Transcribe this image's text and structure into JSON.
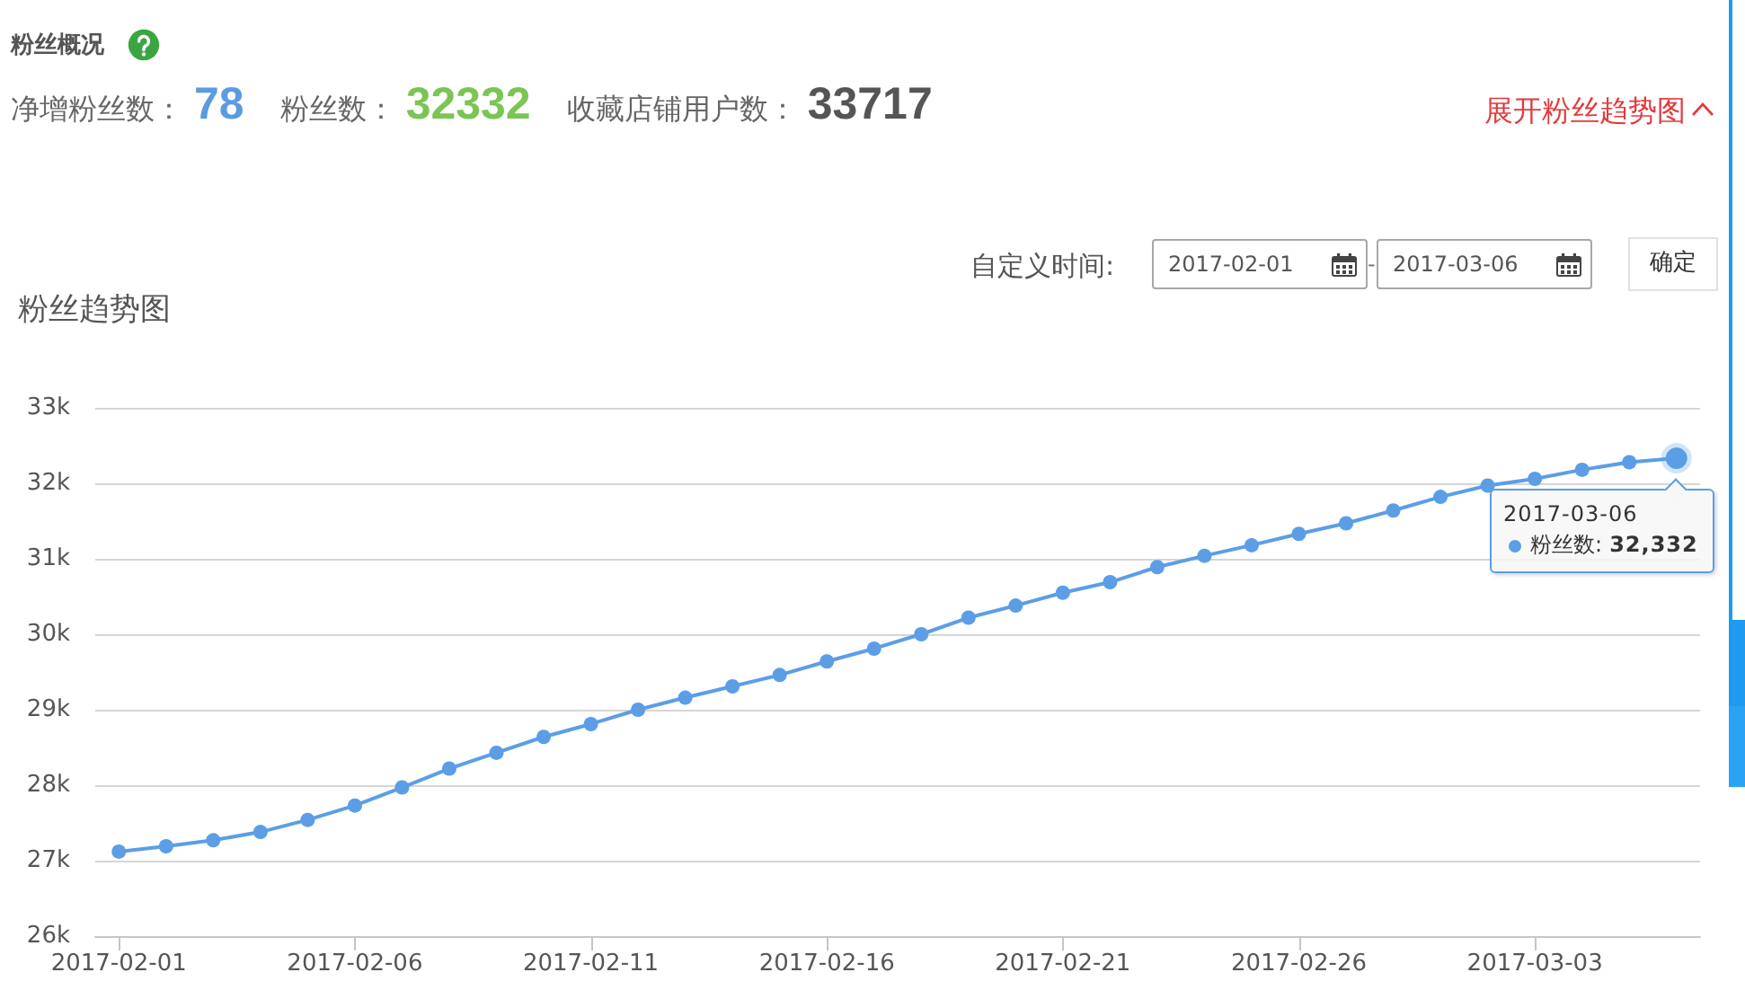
{
  "chart_data": {
    "type": "line",
    "title": "粉丝趋势图",
    "x": [
      "2017-02-01",
      "2017-02-02",
      "2017-02-03",
      "2017-02-04",
      "2017-02-05",
      "2017-02-06",
      "2017-02-07",
      "2017-02-08",
      "2017-02-09",
      "2017-02-10",
      "2017-02-11",
      "2017-02-12",
      "2017-02-13",
      "2017-02-14",
      "2017-02-15",
      "2017-02-16",
      "2017-02-17",
      "2017-02-18",
      "2017-02-19",
      "2017-02-20",
      "2017-02-21",
      "2017-02-22",
      "2017-02-23",
      "2017-02-24",
      "2017-02-25",
      "2017-02-26",
      "2017-02-27",
      "2017-02-28",
      "2017-03-01",
      "2017-03-02",
      "2017-03-03",
      "2017-03-04",
      "2017-03-05",
      "2017-03-06"
    ],
    "series": [
      {
        "name": "粉丝数:",
        "color": "#5b9ee6",
        "values": [
          27120,
          27190,
          27270,
          27380,
          27540,
          27730,
          27970,
          28220,
          28430,
          28640,
          28810,
          29000,
          29160,
          29310,
          29460,
          29640,
          29810,
          30000,
          30220,
          30380,
          30550,
          30690,
          30890,
          31040,
          31180,
          31330,
          31470,
          31640,
          31820,
          31970,
          32060,
          32180,
          32280,
          32332
        ]
      }
    ],
    "xlim": [
      "2017-01-31T12:00",
      "2017-03-06T12:00"
    ],
    "xticks": [
      "2017-02-01",
      "2017-02-06",
      "2017-02-11",
      "2017-02-16",
      "2017-02-21",
      "2017-02-26",
      "2017-03-03"
    ],
    "ylim": [
      26000,
      33000
    ],
    "yticks": [
      {
        "value": 26000,
        "label": "26k"
      },
      {
        "value": 27000,
        "label": "27k"
      },
      {
        "value": 28000,
        "label": "28k"
      },
      {
        "value": 29000,
        "label": "29k"
      },
      {
        "value": 30000,
        "label": "30k"
      },
      {
        "value": 31000,
        "label": "31k"
      },
      {
        "value": 32000,
        "label": "32k"
      },
      {
        "value": 33000,
        "label": "33k"
      }
    ],
    "grid": "y",
    "marker": "circle",
    "line_style": "solid",
    "annotations": [
      "粉丝概况",
      "净增粉丝数：",
      "78",
      "粉丝数：",
      "32332",
      "收藏店铺用户数：",
      "33717",
      "展开粉丝趋势图",
      "自定义时间:",
      "2017-02-01",
      "-",
      "2017-03-06",
      "确定",
      {
        "text": "2017-03-06",
        "x": "2017-03-06",
        "y": 32332
      },
      "32,332"
    ]
  }
}
